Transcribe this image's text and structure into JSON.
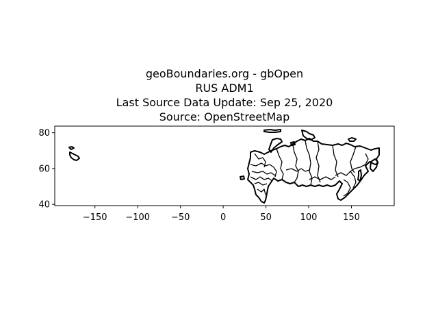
{
  "title_lines": [
    "geoBoundaries.org - gbOpen",
    "RUS ADM1",
    "Last Source Data Update: Sep 25, 2020",
    "Source: OpenStreetMap"
  ],
  "map": {
    "country": "RUS",
    "level": "ADM1",
    "x_range": [
      -197,
      200
    ],
    "y_range": [
      39.3,
      83.7
    ],
    "x_ticks": [
      -150,
      -100,
      -50,
      0,
      50,
      100,
      150
    ],
    "x_tick_labels": [
      "−150",
      "−100",
      "−50",
      "0",
      "50",
      "100",
      "150"
    ],
    "y_ticks": [
      40,
      60,
      80
    ],
    "y_tick_labels": [
      "40",
      "60",
      "80"
    ],
    "boundary_color": "#000000",
    "background_color": "#ffffff"
  }
}
